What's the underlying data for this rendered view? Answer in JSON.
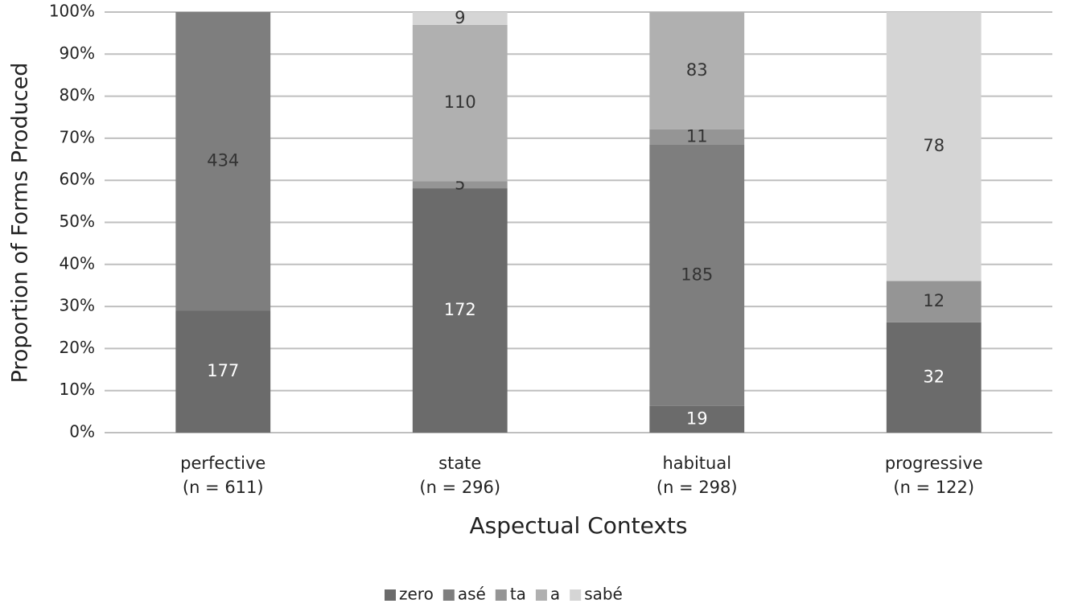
{
  "chart_data": {
    "type": "bar",
    "stack": "percent",
    "y_label": "Proportion of Forms Produced",
    "x_label": "Aspectual Contexts",
    "categories": [
      [
        "perfective",
        "(n = 611)"
      ],
      [
        "state",
        "(n = 296)"
      ],
      [
        "habitual",
        "(n = 298)"
      ],
      [
        "progressive",
        "(n = 122)"
      ]
    ],
    "series": [
      {
        "name": "zero",
        "color": "#6b6b6b",
        "values": [
          177,
          172,
          19,
          32
        ]
      },
      {
        "name": "asé",
        "color": "#7e7e7e",
        "values": [
          434,
          null,
          185,
          null
        ]
      },
      {
        "name": "ta",
        "color": "#959595",
        "values": [
          null,
          5,
          11,
          12
        ]
      },
      {
        "name": "a",
        "color": "#b0b0b0",
        "values": [
          null,
          110,
          83,
          null
        ]
      },
      {
        "name": "sabé",
        "color": "#d5d5d5",
        "values": [
          null,
          9,
          null,
          78
        ]
      }
    ],
    "ylim": [
      0,
      100
    ],
    "yticks": [
      {
        "value": 0,
        "label": "0%"
      },
      {
        "value": 10,
        "label": "10%"
      },
      {
        "value": 20,
        "label": "20%"
      },
      {
        "value": 30,
        "label": "30%"
      },
      {
        "value": 40,
        "label": "40%"
      },
      {
        "value": 50,
        "label": "50%"
      },
      {
        "value": 60,
        "label": "60%"
      },
      {
        "value": 70,
        "label": "70%"
      },
      {
        "value": 80,
        "label": "80%"
      },
      {
        "value": 90,
        "label": "90%"
      },
      {
        "value": 100,
        "label": "100%"
      }
    ],
    "grid": true,
    "legend": "bottom"
  }
}
